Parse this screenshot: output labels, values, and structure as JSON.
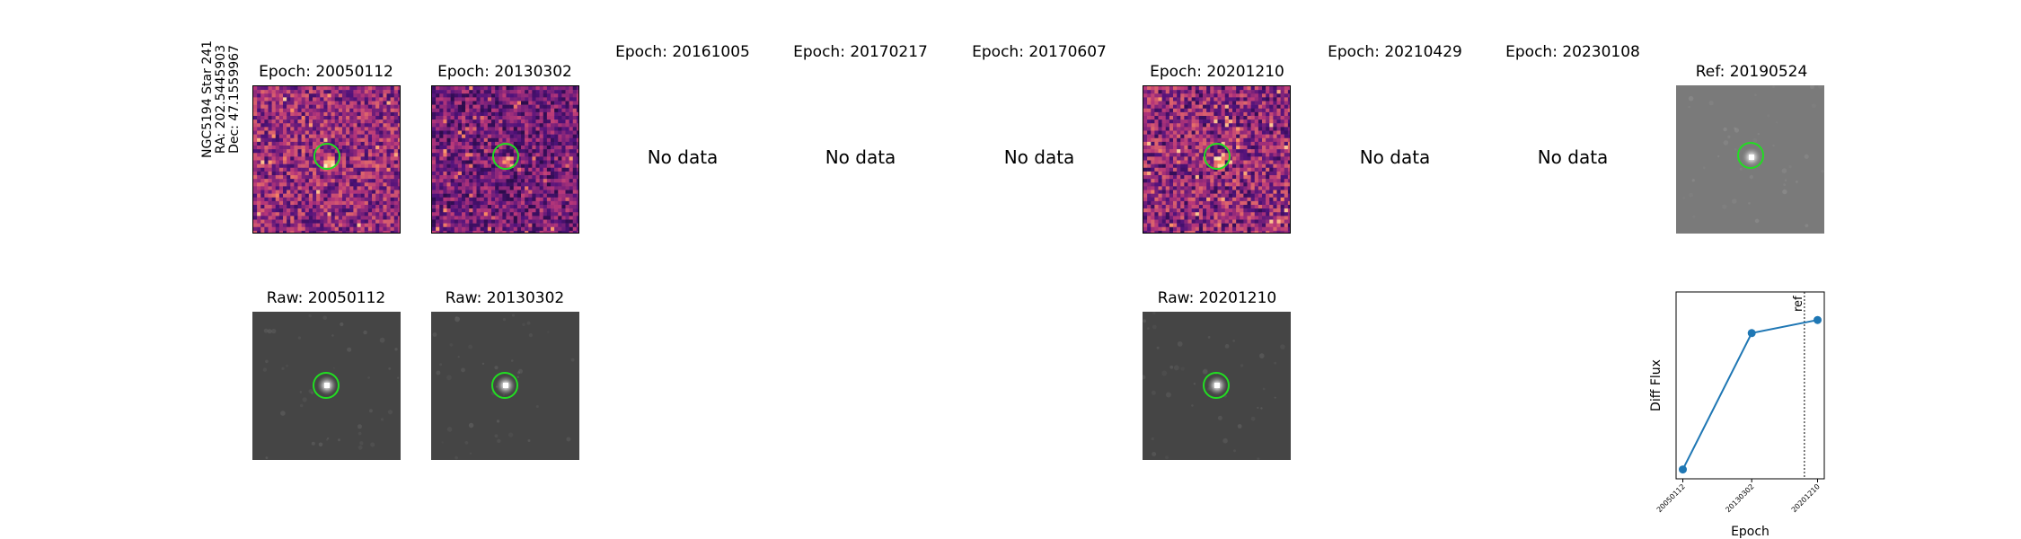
{
  "star": {
    "name": "NGC5194 Star 241",
    "ra": "RA: 202.5445903",
    "dec": "Dec: 47.1559967"
  },
  "epochs": [
    {
      "label": "Epoch: 20050112",
      "has_data": true,
      "raw_label": "Raw: 20050112"
    },
    {
      "label": "Epoch: 20130302",
      "has_data": true,
      "raw_label": "Raw: 20130302"
    },
    {
      "label": "Epoch: 20161005",
      "has_data": false,
      "no_data_text": "No data"
    },
    {
      "label": "Epoch: 20170217",
      "has_data": false,
      "no_data_text": "No data"
    },
    {
      "label": "Epoch: 20170607",
      "has_data": false,
      "no_data_text": "No data"
    },
    {
      "label": "Epoch: 20201210",
      "has_data": true,
      "raw_label": "Raw: 20201210"
    },
    {
      "label": "Epoch: 20210429",
      "has_data": false,
      "no_data_text": "No data"
    },
    {
      "label": "Epoch: 20230108",
      "has_data": false,
      "no_data_text": "No data"
    }
  ],
  "reference": {
    "label": "Ref: 20190524"
  },
  "colors": {
    "ring": "#22dd22",
    "series": "#1f77b4",
    "raw_background": "#454545",
    "ref_background": "#7a7a7a"
  },
  "chart_data": {
    "type": "line",
    "x": [
      "20050112",
      "20130302",
      "20201210"
    ],
    "series": [
      {
        "values": [
          0.05,
          0.78,
          0.85
        ]
      }
    ],
    "xlabel": "Epoch",
    "ylabel": "Diff Flux",
    "ytick_labels": false,
    "ref_marker": {
      "x": "20190524",
      "label": "ref",
      "style": "dotted"
    },
    "ylim": [
      0,
      1
    ],
    "grid": false,
    "legend": "none"
  }
}
